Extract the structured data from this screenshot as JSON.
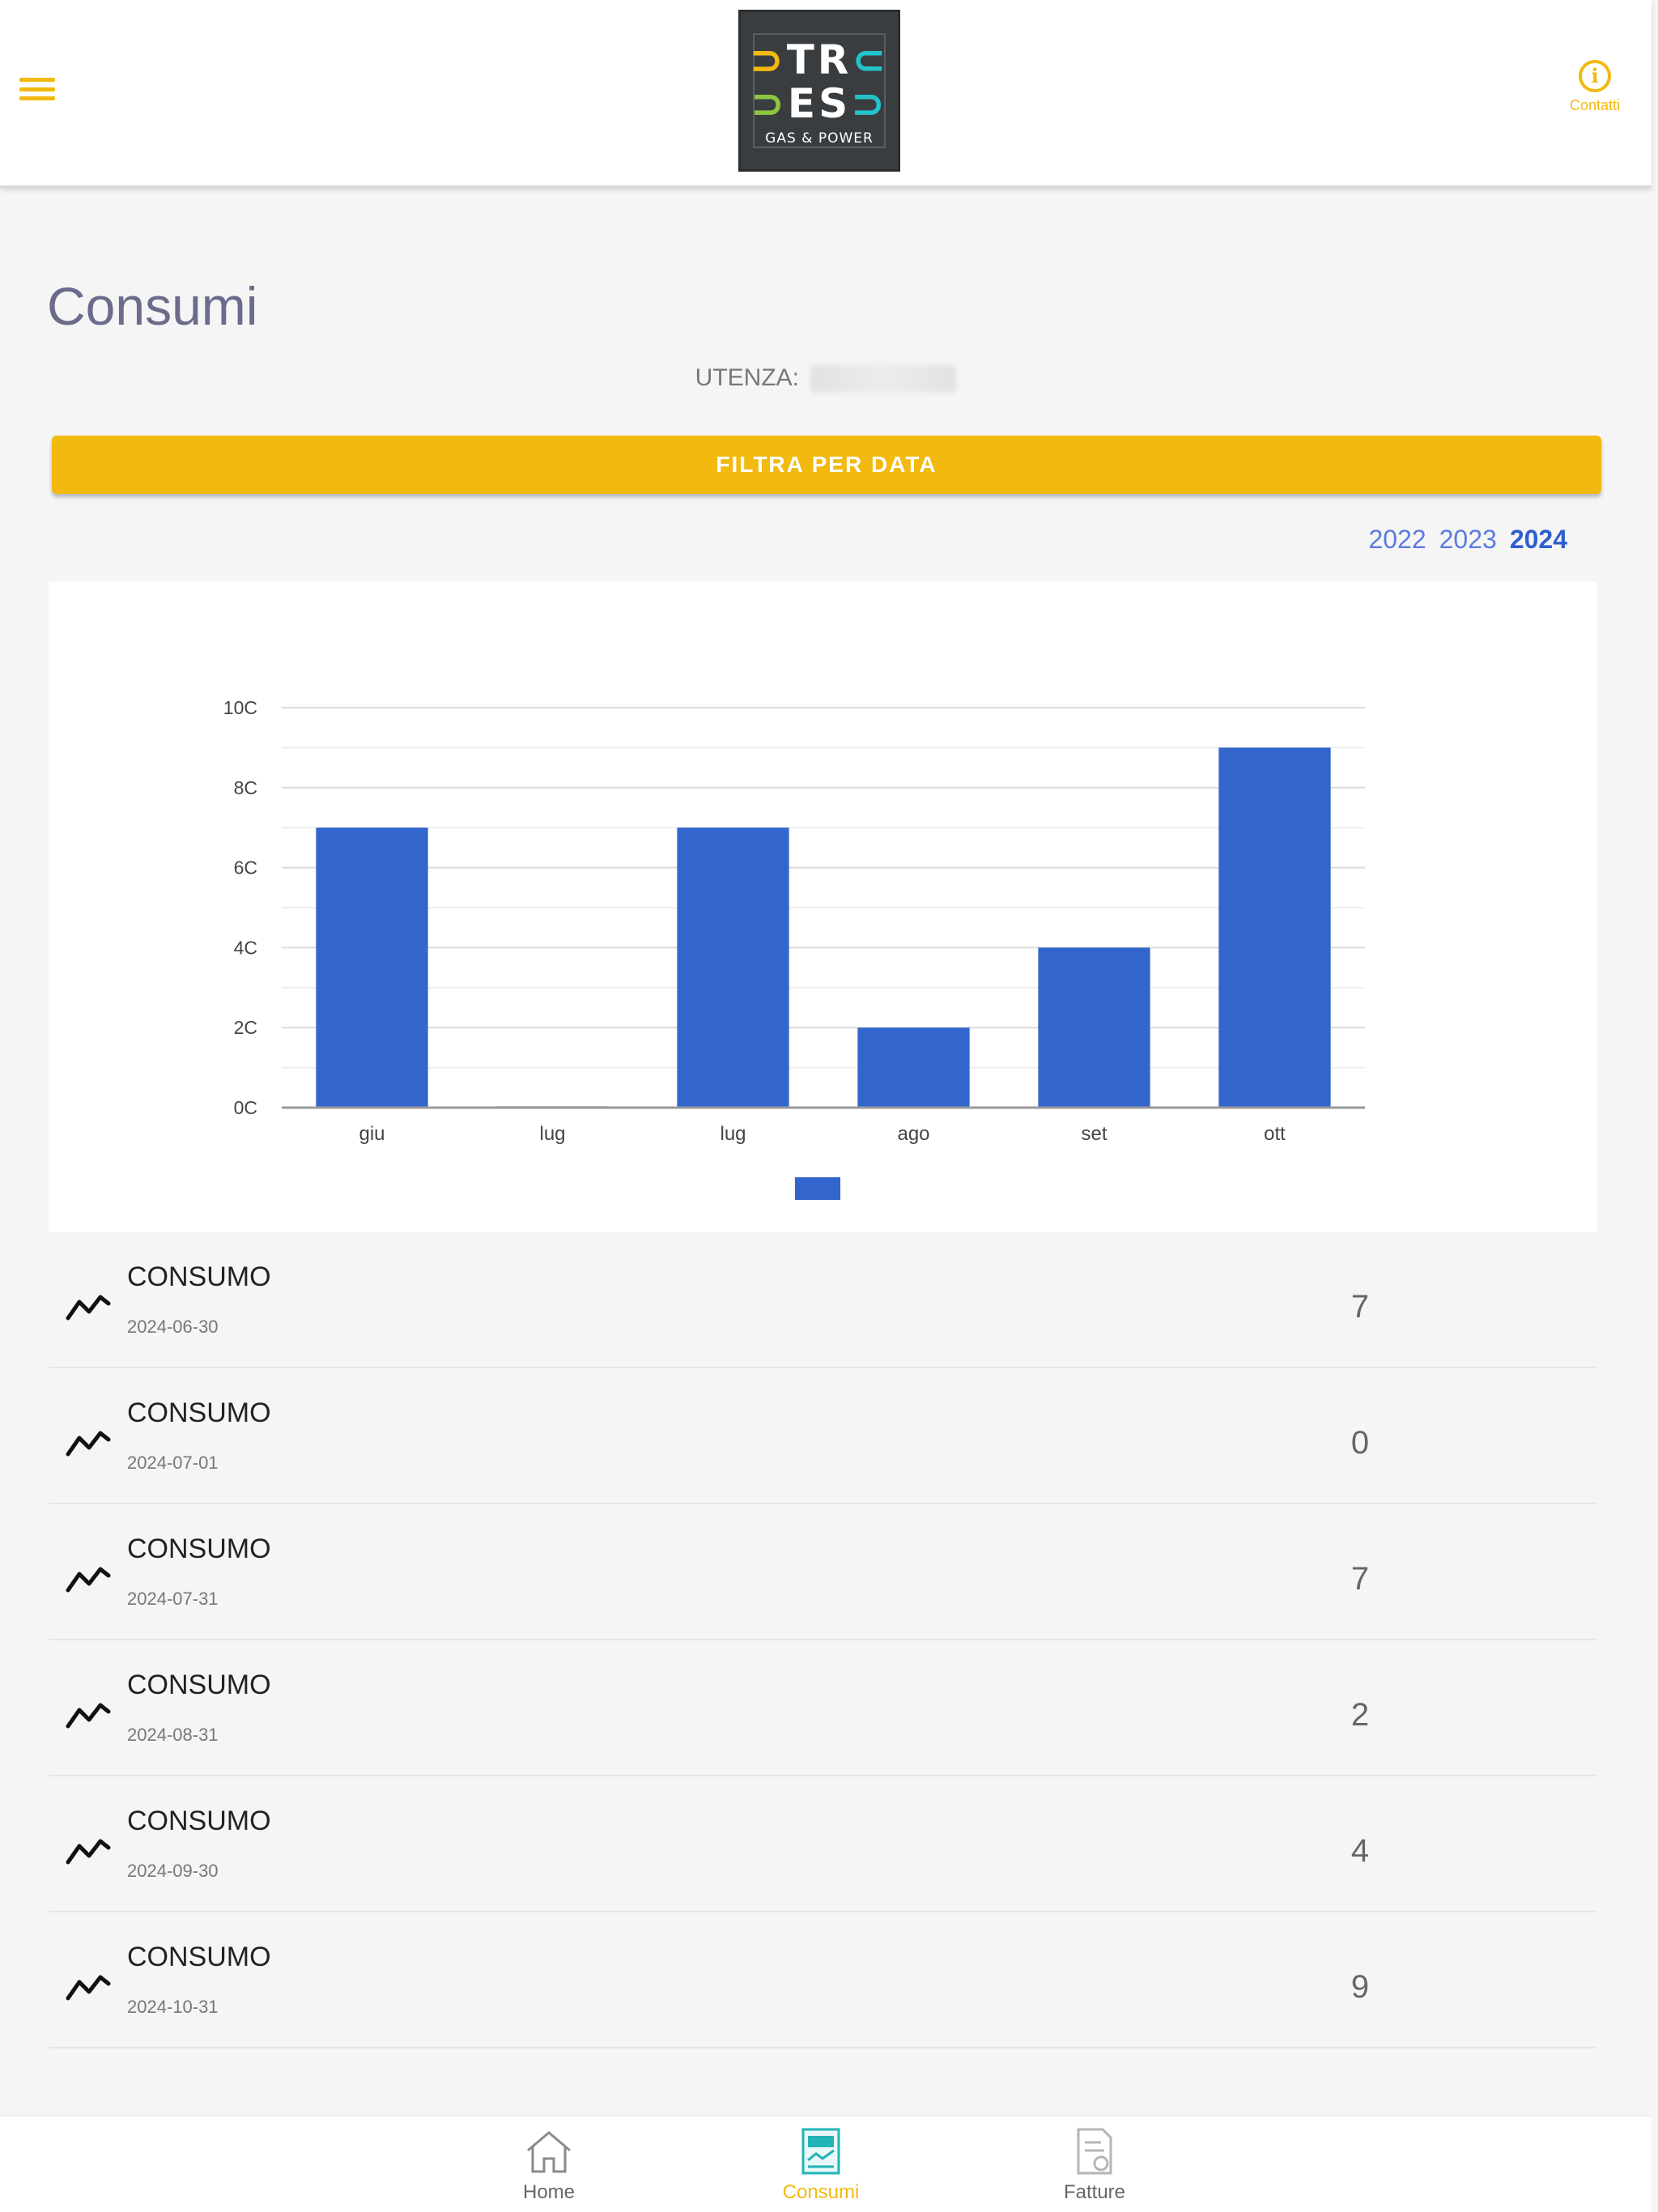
{
  "header": {
    "logo": {
      "line1": "TR",
      "line2": "ES",
      "subtitle": "GAS & POWER"
    },
    "contact_label": "Contatti"
  },
  "page": {
    "title": "Consumi",
    "utenza_label": "UTENZA:",
    "filter_button": "FILTRA PER DATA"
  },
  "years": [
    "2022",
    "2023",
    "2024"
  ],
  "selected_year": "2024",
  "colors": {
    "accent": "#f2b90f",
    "bar": "#3366cc",
    "title": "#6a6c8a",
    "link": "#5a7be0"
  },
  "chart_data": {
    "type": "bar",
    "categories": [
      "giu",
      "lug",
      "lug",
      "ago",
      "set",
      "ott"
    ],
    "values": [
      7,
      0,
      7,
      2,
      4,
      9
    ],
    "ytick_labels": [
      "0C",
      "2C",
      "4C",
      "6C",
      "8C",
      "10C"
    ],
    "ylim": [
      0,
      10
    ],
    "grid": true,
    "legend_position": "bottom"
  },
  "list": {
    "items": [
      {
        "title": "CONSUMO",
        "date": "2024-06-30",
        "value": "7"
      },
      {
        "title": "CONSUMO",
        "date": "2024-07-01",
        "value": "0"
      },
      {
        "title": "CONSUMO",
        "date": "2024-07-31",
        "value": "7"
      },
      {
        "title": "CONSUMO",
        "date": "2024-08-31",
        "value": "2"
      },
      {
        "title": "CONSUMO",
        "date": "2024-09-30",
        "value": "4"
      },
      {
        "title": "CONSUMO",
        "date": "2024-10-31",
        "value": "9"
      }
    ]
  },
  "tabbar": {
    "items": [
      {
        "label": "Home",
        "icon": "home-icon"
      },
      {
        "label": "Consumi",
        "icon": "consumption-icon"
      },
      {
        "label": "Fatture",
        "icon": "invoice-icon"
      }
    ],
    "active": 1
  }
}
